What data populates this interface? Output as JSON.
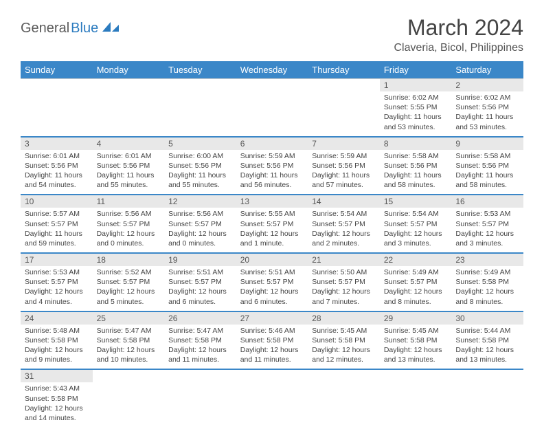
{
  "brand": {
    "part1": "General",
    "part2": "Blue"
  },
  "title": "March 2024",
  "location": "Claveria, Bicol, Philippines",
  "colors": {
    "header_bg": "#3b87c8",
    "header_text": "#ffffff",
    "daynum_bg": "#e8e8e8",
    "row_divider": "#3b87c8",
    "text": "#444444",
    "logo_grey": "#5a5a5a",
    "logo_blue": "#2b7bbf"
  },
  "daysOfWeek": [
    "Sunday",
    "Monday",
    "Tuesday",
    "Wednesday",
    "Thursday",
    "Friday",
    "Saturday"
  ],
  "weeks": [
    [
      null,
      null,
      null,
      null,
      null,
      {
        "n": "1",
        "sr": "6:02 AM",
        "ss": "5:55 PM",
        "dl": "11 hours and 53 minutes."
      },
      {
        "n": "2",
        "sr": "6:02 AM",
        "ss": "5:56 PM",
        "dl": "11 hours and 53 minutes."
      }
    ],
    [
      {
        "n": "3",
        "sr": "6:01 AM",
        "ss": "5:56 PM",
        "dl": "11 hours and 54 minutes."
      },
      {
        "n": "4",
        "sr": "6:01 AM",
        "ss": "5:56 PM",
        "dl": "11 hours and 55 minutes."
      },
      {
        "n": "5",
        "sr": "6:00 AM",
        "ss": "5:56 PM",
        "dl": "11 hours and 55 minutes."
      },
      {
        "n": "6",
        "sr": "5:59 AM",
        "ss": "5:56 PM",
        "dl": "11 hours and 56 minutes."
      },
      {
        "n": "7",
        "sr": "5:59 AM",
        "ss": "5:56 PM",
        "dl": "11 hours and 57 minutes."
      },
      {
        "n": "8",
        "sr": "5:58 AM",
        "ss": "5:56 PM",
        "dl": "11 hours and 58 minutes."
      },
      {
        "n": "9",
        "sr": "5:58 AM",
        "ss": "5:56 PM",
        "dl": "11 hours and 58 minutes."
      }
    ],
    [
      {
        "n": "10",
        "sr": "5:57 AM",
        "ss": "5:57 PM",
        "dl": "11 hours and 59 minutes."
      },
      {
        "n": "11",
        "sr": "5:56 AM",
        "ss": "5:57 PM",
        "dl": "12 hours and 0 minutes."
      },
      {
        "n": "12",
        "sr": "5:56 AM",
        "ss": "5:57 PM",
        "dl": "12 hours and 0 minutes."
      },
      {
        "n": "13",
        "sr": "5:55 AM",
        "ss": "5:57 PM",
        "dl": "12 hours and 1 minute."
      },
      {
        "n": "14",
        "sr": "5:54 AM",
        "ss": "5:57 PM",
        "dl": "12 hours and 2 minutes."
      },
      {
        "n": "15",
        "sr": "5:54 AM",
        "ss": "5:57 PM",
        "dl": "12 hours and 3 minutes."
      },
      {
        "n": "16",
        "sr": "5:53 AM",
        "ss": "5:57 PM",
        "dl": "12 hours and 3 minutes."
      }
    ],
    [
      {
        "n": "17",
        "sr": "5:53 AM",
        "ss": "5:57 PM",
        "dl": "12 hours and 4 minutes."
      },
      {
        "n": "18",
        "sr": "5:52 AM",
        "ss": "5:57 PM",
        "dl": "12 hours and 5 minutes."
      },
      {
        "n": "19",
        "sr": "5:51 AM",
        "ss": "5:57 PM",
        "dl": "12 hours and 6 minutes."
      },
      {
        "n": "20",
        "sr": "5:51 AM",
        "ss": "5:57 PM",
        "dl": "12 hours and 6 minutes."
      },
      {
        "n": "21",
        "sr": "5:50 AM",
        "ss": "5:57 PM",
        "dl": "12 hours and 7 minutes."
      },
      {
        "n": "22",
        "sr": "5:49 AM",
        "ss": "5:57 PM",
        "dl": "12 hours and 8 minutes."
      },
      {
        "n": "23",
        "sr": "5:49 AM",
        "ss": "5:58 PM",
        "dl": "12 hours and 8 minutes."
      }
    ],
    [
      {
        "n": "24",
        "sr": "5:48 AM",
        "ss": "5:58 PM",
        "dl": "12 hours and 9 minutes."
      },
      {
        "n": "25",
        "sr": "5:47 AM",
        "ss": "5:58 PM",
        "dl": "12 hours and 10 minutes."
      },
      {
        "n": "26",
        "sr": "5:47 AM",
        "ss": "5:58 PM",
        "dl": "12 hours and 11 minutes."
      },
      {
        "n": "27",
        "sr": "5:46 AM",
        "ss": "5:58 PM",
        "dl": "12 hours and 11 minutes."
      },
      {
        "n": "28",
        "sr": "5:45 AM",
        "ss": "5:58 PM",
        "dl": "12 hours and 12 minutes."
      },
      {
        "n": "29",
        "sr": "5:45 AM",
        "ss": "5:58 PM",
        "dl": "12 hours and 13 minutes."
      },
      {
        "n": "30",
        "sr": "5:44 AM",
        "ss": "5:58 PM",
        "dl": "12 hours and 13 minutes."
      }
    ],
    [
      {
        "n": "31",
        "sr": "5:43 AM",
        "ss": "5:58 PM",
        "dl": "12 hours and 14 minutes."
      },
      null,
      null,
      null,
      null,
      null,
      null
    ]
  ],
  "labels": {
    "sunrise": "Sunrise:",
    "sunset": "Sunset:",
    "daylight": "Daylight:"
  }
}
